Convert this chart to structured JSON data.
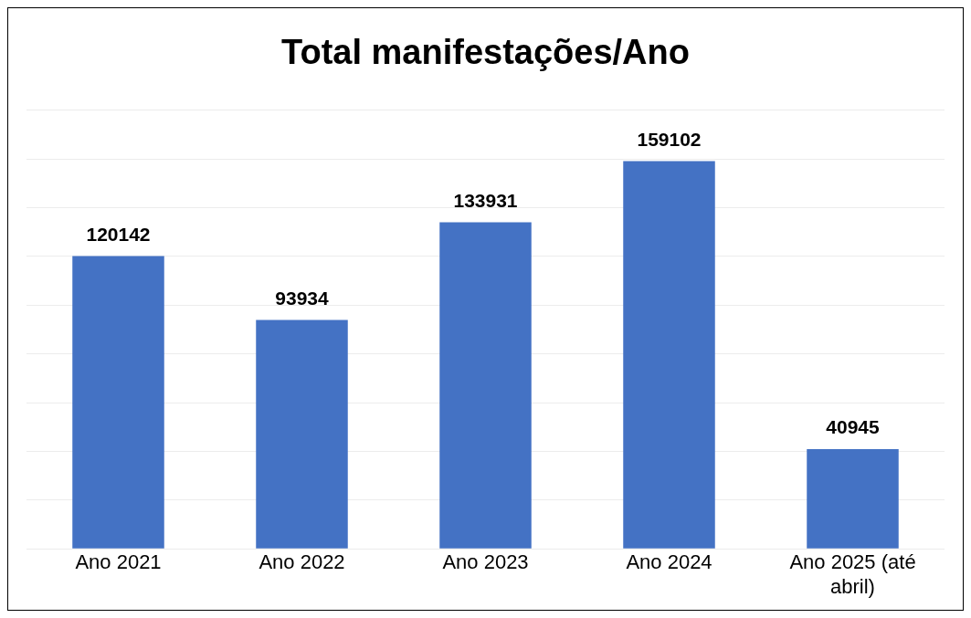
{
  "chart_data": {
    "type": "bar",
    "title": "Total manifestações/Ano",
    "categories": [
      "Ano 2021",
      "Ano 2022",
      "Ano 2023",
      "Ano 2024",
      "Ano 2025 (até abril)"
    ],
    "values": [
      120142,
      93934,
      133931,
      159102,
      40945
    ],
    "color": "#4472c4",
    "ylim": [
      0,
      180000
    ],
    "yticks": [
      {
        "value": 0,
        "label": null
      },
      {
        "value": 20000,
        "label": null
      },
      {
        "value": 40000,
        "label": null
      },
      {
        "value": 60000,
        "label": null
      },
      {
        "value": 80000,
        "label": null
      },
      {
        "value": 100000,
        "label": null
      },
      {
        "value": 120000,
        "label": null
      },
      {
        "value": 140000,
        "label": null
      },
      {
        "value": 160000,
        "label": null
      },
      {
        "value": 180000,
        "label": null
      }
    ],
    "tick_labels": "x",
    "grid": "y",
    "data_labels": true,
    "legend": false
  }
}
